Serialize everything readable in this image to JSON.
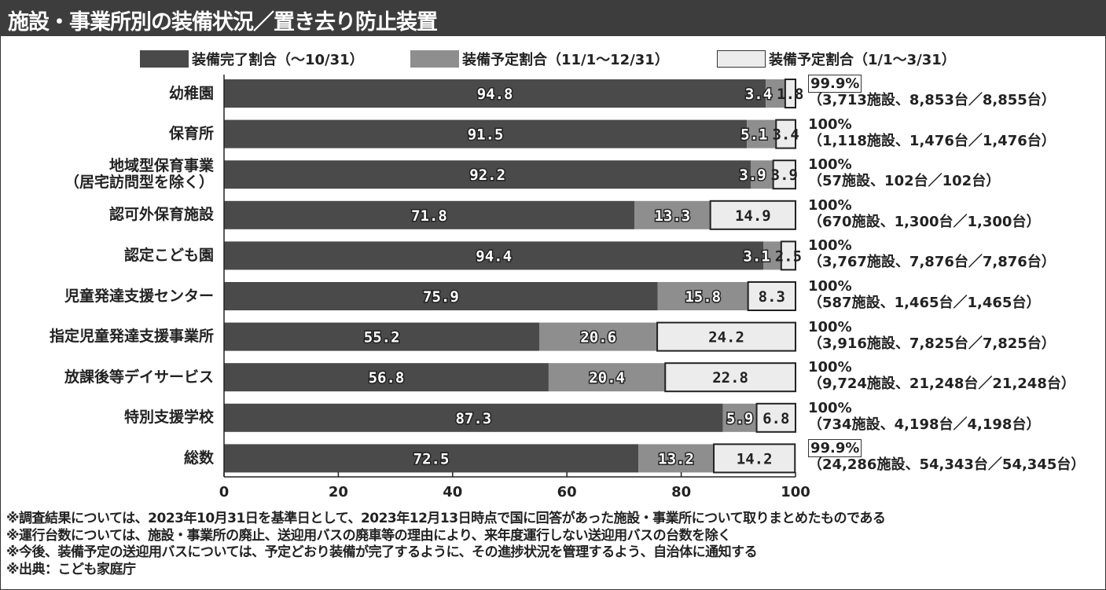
{
  "title": "施設・事業所別の装備状況／置き去り防止装置",
  "chart_data": {
    "type": "bar",
    "orientation": "horizontal",
    "stacked": true,
    "title": "施設・事業所別の装備状況／置き去り防止装置",
    "xlim": [
      0,
      100
    ],
    "xticks": [
      "0",
      "20",
      "40",
      "60",
      "80",
      "100"
    ],
    "legend_position": "top",
    "colors": [
      "#4a4a4a",
      "#8e8e8e",
      "#ececec"
    ],
    "categories": [
      "幼稚園",
      "保育所",
      "地域型保育事業\n（居宅訪問型を除く）",
      "認可外保育施設",
      "認定こども園",
      "児童発達支援センター",
      "指定児童発達支援事業所",
      "放課後等デイサービス",
      "特別支援学校",
      "総数"
    ],
    "series": [
      {
        "name": "装備完了割合（～10/31）",
        "values": [
          94.8,
          91.5,
          92.2,
          71.8,
          94.4,
          75.9,
          55.2,
          56.8,
          87.3,
          72.5
        ]
      },
      {
        "name": "装備予定割合（11/1～12/31）",
        "values": [
          3.4,
          5.1,
          3.9,
          13.3,
          3.1,
          15.8,
          20.6,
          20.4,
          5.9,
          13.2
        ]
      },
      {
        "name": "装備予定割合（1/1～3/31）",
        "values": [
          1.8,
          3.4,
          3.9,
          14.9,
          2.5,
          8.3,
          24.2,
          22.8,
          6.8,
          14.2
        ]
      }
    ],
    "totals": [
      {
        "pct": "99.9%",
        "boxed": true,
        "detail": "（3,713施設、8,853台／8,855台）"
      },
      {
        "pct": "100%",
        "boxed": false,
        "detail": "（1,118施設、1,476台／1,476台）"
      },
      {
        "pct": "100%",
        "boxed": false,
        "detail": "（57施設、102台／102台）"
      },
      {
        "pct": "100%",
        "boxed": false,
        "detail": "（670施設、1,300台／1,300台）"
      },
      {
        "pct": "100%",
        "boxed": false,
        "detail": "（3,767施設、7,876台／7,876台）"
      },
      {
        "pct": "100%",
        "boxed": false,
        "detail": "（587施設、1,465台／1,465台）"
      },
      {
        "pct": "100%",
        "boxed": false,
        "detail": "（3,916施設、7,825台／7,825台）"
      },
      {
        "pct": "100%",
        "boxed": false,
        "detail": "（9,724施設、21,248台／21,248台）"
      },
      {
        "pct": "100%",
        "boxed": false,
        "detail": "（734施設、4,198台／4,198台）"
      },
      {
        "pct": "99.9%",
        "boxed": true,
        "detail": "（24,286施設、54,343台／54,345台）"
      }
    ]
  },
  "notes": [
    "※調査結果については、2023年10月31日を基準日として、2023年12月13日時点で国に回答があった施設・事業所について取りまとめたものである",
    "※運行台数については、施設・事業所の廃止、送迎用バスの廃車等の理由により、来年度運行しない送迎用バスの台数を除く",
    "※今後、装備予定の送迎用バスについては、予定どおり装備が完了するように、その進捗状況を管理するよう、自治体に通知する",
    "※出典：こども家庭庁"
  ]
}
